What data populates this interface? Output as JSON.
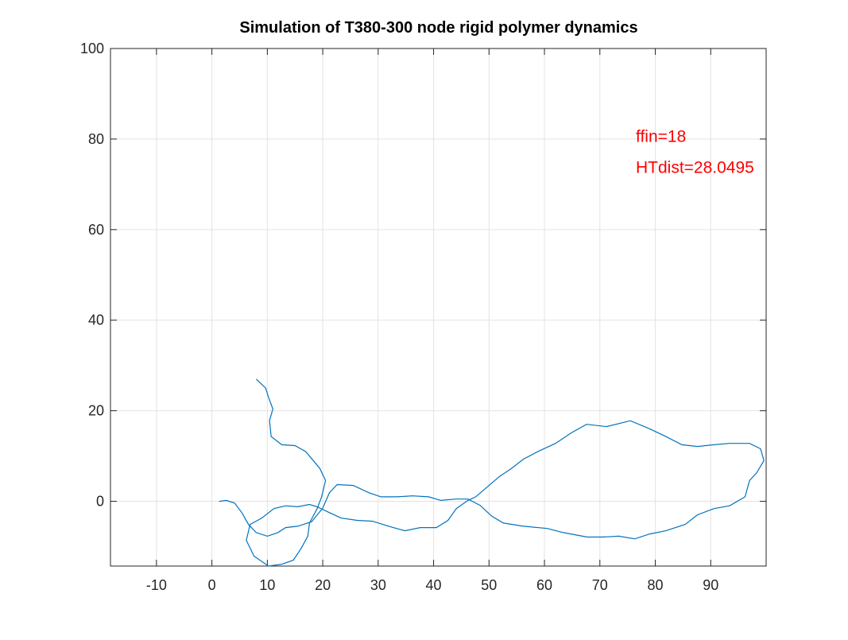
{
  "chart_data": {
    "type": "line",
    "title": "Simulation of T380-300 node rigid polymer dynamics",
    "annotations": [
      "ffin=18",
      "HTdist=28.0495"
    ],
    "xlim": [
      -18.3,
      100
    ],
    "ylim": [
      -14.3,
      100
    ],
    "xticks": [
      -10,
      0,
      10,
      20,
      30,
      40,
      50,
      60,
      70,
      80,
      90
    ],
    "yticks": [
      0,
      20,
      40,
      60,
      80,
      100
    ],
    "grid": true,
    "series": [
      {
        "color": "#0072bd",
        "x": [
          8,
          9.7,
          10.2,
          11,
          10.4,
          10.7,
          12.6,
          15,
          16.9,
          18.3,
          19.5,
          20.5,
          19.8,
          19,
          17.6,
          17.3,
          16.1,
          14.7,
          12.6,
          10.2,
          7.6,
          6.2,
          6.9,
          9,
          11.2,
          13.3,
          15.5,
          17.6,
          19,
          21.2,
          23.3,
          26.2,
          29,
          31.9,
          34.8,
          37.6,
          40.5,
          42.6,
          44.1,
          46.2,
          47.6,
          49.8,
          51.9,
          54,
          56.2,
          59,
          62,
          64.8,
          67.6,
          71.2,
          75.5,
          79,
          81.9,
          84.8,
          87.6,
          90.6,
          93.4,
          97,
          99,
          99.6,
          98.3,
          97,
          96.2,
          93.4,
          90.6,
          87.6,
          85.4,
          81.9,
          79,
          76.3,
          73.4,
          70.5,
          67.7,
          63.4,
          60.5,
          56.2,
          52.6,
          50.5,
          48.4,
          46.2,
          44.1,
          41.3,
          39.1,
          36.2,
          33.3,
          30.5,
          28.3,
          25.5,
          22.6,
          21.2,
          20,
          18,
          15.5,
          13.3,
          11.9,
          10,
          8,
          6.6,
          5.4,
          4.1,
          2.6,
          1.3
        ],
        "values": [
          27,
          25,
          23,
          20.4,
          17.8,
          14.3,
          12.5,
          12.3,
          11,
          9,
          7.2,
          4.6,
          1,
          -1.6,
          -4.8,
          -7.7,
          -10.4,
          -13,
          -13.9,
          -14.3,
          -12.1,
          -8.6,
          -5.1,
          -3.7,
          -1.6,
          -1,
          -1.2,
          -0.7,
          -1.2,
          -2.5,
          -3.7,
          -4.2,
          -4.4,
          -5.5,
          -6.5,
          -5.8,
          -5.8,
          -4.2,
          -1.6,
          0.2,
          1,
          3.3,
          5.5,
          7.2,
          9.3,
          11.1,
          12.8,
          15.1,
          17,
          16.5,
          17.8,
          16,
          14.3,
          12.5,
          12.1,
          12.5,
          12.8,
          12.8,
          11.6,
          9,
          6.3,
          4.6,
          1,
          -1,
          -1.6,
          -3,
          -5.1,
          -6.5,
          -7.2,
          -8.3,
          -7.7,
          -7.9,
          -7.9,
          -6.9,
          -6,
          -5.5,
          -4.8,
          -3.3,
          -0.9,
          0.5,
          0.5,
          0.2,
          1,
          1.2,
          1,
          1,
          1.9,
          3.5,
          3.7,
          1.9,
          -1.5,
          -4.5,
          -5.5,
          -5.8,
          -6.9,
          -7.7,
          -6.9,
          -5.1,
          -2.5,
          -0.4,
          0.2,
          0
        ]
      }
    ]
  }
}
